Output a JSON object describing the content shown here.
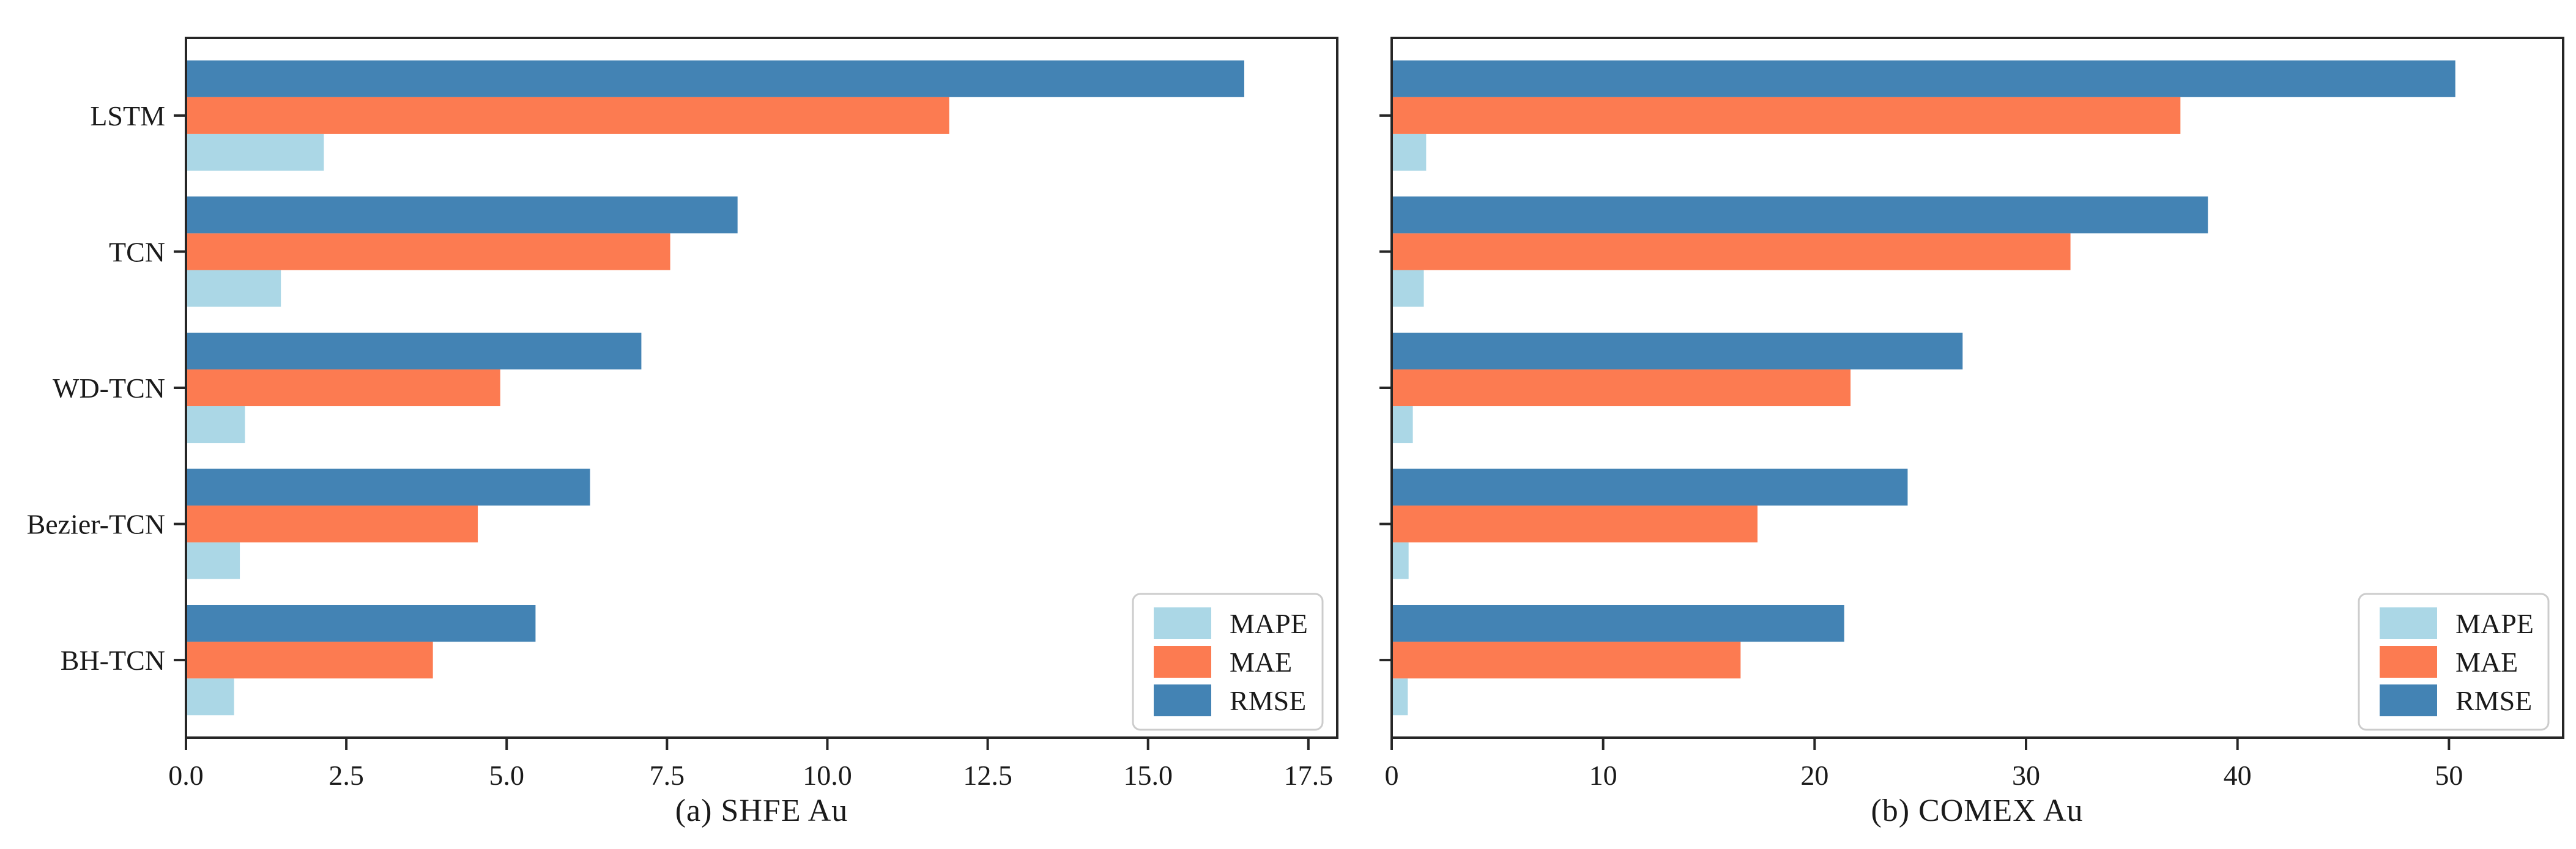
{
  "page": {
    "background": "#ffffff"
  },
  "colors": {
    "MAPE": "#ABD7E6",
    "MAE": "#FC7B51",
    "RMSE": "#4383B4",
    "axis": "#262626",
    "text": "#1a1a1a",
    "legend_border": "#cccccc",
    "legend_fill": "#ffffff"
  },
  "legend": {
    "items": [
      "MAPE",
      "MAE",
      "RMSE"
    ],
    "position": "lower right"
  },
  "chart_data": [
    {
      "type": "bar",
      "orientation": "horizontal",
      "title": "(a) SHFE Au",
      "categories": [
        "LSTM",
        "TCN",
        "WD-TCN",
        "Bezier-TCN",
        "BH-TCN"
      ],
      "series": [
        {
          "name": "MAPE",
          "values": [
            2.15,
            1.48,
            0.92,
            0.84,
            0.75
          ]
        },
        {
          "name": "MAE",
          "values": [
            11.9,
            7.55,
            4.9,
            4.55,
            3.85
          ]
        },
        {
          "name": "RMSE",
          "values": [
            16.5,
            8.6,
            7.1,
            6.3,
            5.45
          ]
        }
      ],
      "xlim": [
        0,
        17.95
      ],
      "x_ticks": {
        "values": [
          0,
          2.5,
          5,
          7.5,
          10,
          12.5,
          15,
          17.5
        ],
        "labels": [
          "0.0",
          "2.5",
          "5.0",
          "7.5",
          "10.0",
          "12.5",
          "15.0",
          "17.5"
        ]
      },
      "show_y_labels": true,
      "grid": false,
      "legend_position": "lower right"
    },
    {
      "type": "bar",
      "orientation": "horizontal",
      "title": "(b) COMEX Au",
      "categories": [
        "LSTM",
        "TCN",
        "WD-TCN",
        "Bezier-TCN",
        "BH-TCN"
      ],
      "series": [
        {
          "name": "MAPE",
          "values": [
            1.63,
            1.52,
            1.0,
            0.8,
            0.76
          ]
        },
        {
          "name": "MAE",
          "values": [
            37.3,
            32.1,
            21.7,
            17.3,
            16.5
          ]
        },
        {
          "name": "RMSE",
          "values": [
            50.3,
            38.6,
            27.0,
            24.4,
            21.4
          ]
        }
      ],
      "xlim": [
        0,
        55.4
      ],
      "x_ticks": {
        "values": [
          0,
          10,
          20,
          30,
          40,
          50
        ],
        "labels": [
          "0",
          "10",
          "20",
          "30",
          "40",
          "50"
        ]
      },
      "show_y_labels": false,
      "grid": false,
      "legend_position": "lower right"
    }
  ]
}
